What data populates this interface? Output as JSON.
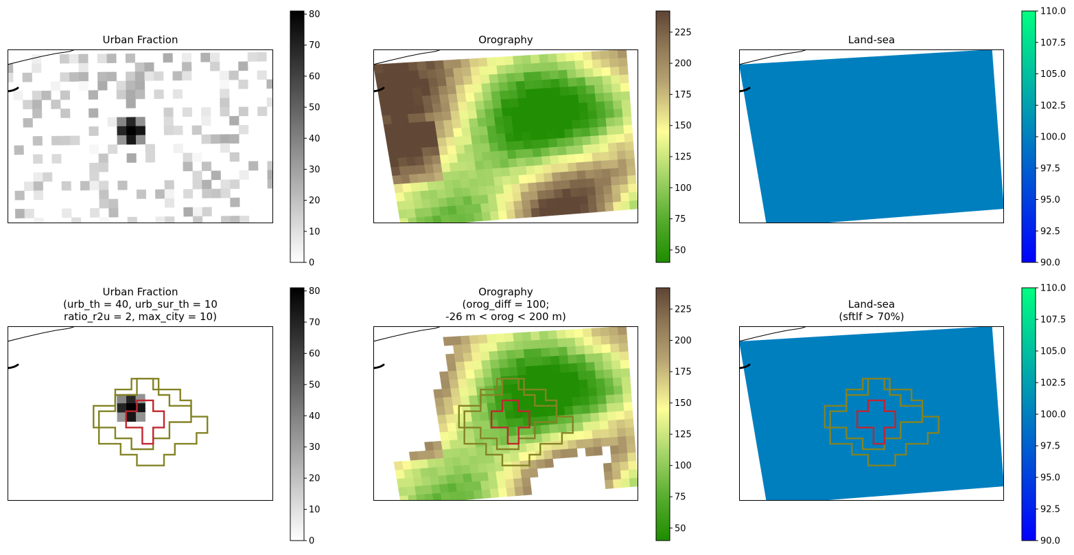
{
  "chart_data": [
    {
      "type": "heatmap",
      "title": "Urban Fraction",
      "cmap": "greys",
      "colorbar": {
        "min": 0,
        "max": 81,
        "ticks": [
          0,
          10,
          20,
          30,
          40,
          50,
          60,
          70,
          80
        ]
      },
      "coastline": true,
      "grid": false,
      "overlay": false
    },
    {
      "type": "heatmap",
      "title": "Orography",
      "cmap": "terrain",
      "colorbar": {
        "min": 40,
        "max": 242,
        "ticks": [
          50,
          75,
          100,
          125,
          150,
          175,
          200,
          225
        ]
      },
      "coastline": true,
      "grid": false,
      "overlay": false
    },
    {
      "type": "heatmap",
      "title": "Land-sea",
      "cmap": "winter",
      "colorbar": {
        "min": 90,
        "max": 110,
        "ticks": [
          90.0,
          92.5,
          95.0,
          97.5,
          100.0,
          102.5,
          105.0,
          107.5,
          110.0
        ]
      },
      "field_value": 100,
      "coastline": true,
      "grid": false,
      "overlay": false
    },
    {
      "type": "heatmap",
      "title": "Urban Fraction\n(urb_th = 40, urb_sur_th = 10\nratio_r2u = 2, max_city = 10)",
      "cmap": "greys",
      "colorbar": {
        "min": 0,
        "max": 81,
        "ticks": [
          0,
          10,
          20,
          30,
          40,
          50,
          60,
          70,
          80
        ]
      },
      "coastline": true,
      "grid": false,
      "overlay": true,
      "masked_urban_only": true
    },
    {
      "type": "heatmap",
      "title": "Orography\n(orog_diff = 100;\n-26 m < orog < 200 m)",
      "cmap": "terrain",
      "colorbar": {
        "min": 40,
        "max": 242,
        "ticks": [
          50,
          75,
          100,
          125,
          150,
          175,
          200,
          225
        ]
      },
      "coastline": true,
      "grid": false,
      "overlay": true,
      "masked_high": true
    },
    {
      "type": "heatmap",
      "title": "Land-sea\n(sftlf > 70%)",
      "cmap": "winter",
      "colorbar": {
        "min": 90,
        "max": 110,
        "ticks": [
          90.0,
          92.5,
          95.0,
          97.5,
          100.0,
          102.5,
          105.0,
          107.5,
          110.0
        ]
      },
      "field_value": 100,
      "coastline": true,
      "grid": false,
      "overlay": true
    }
  ],
  "colors": {
    "urban_outline": "#c0262f",
    "surrounding_outline": "#838325",
    "landsea_fill": "#007fbf"
  }
}
